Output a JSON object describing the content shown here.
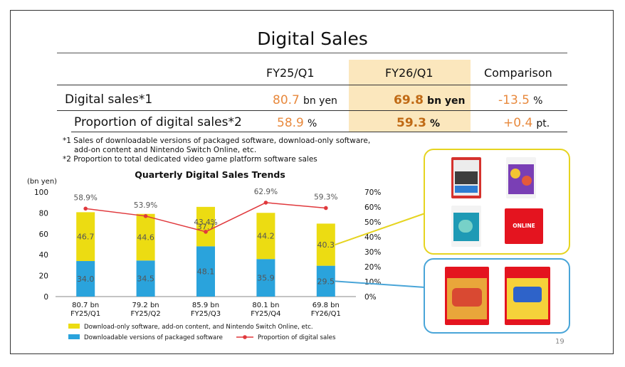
{
  "slide": {
    "title": "Digital Sales",
    "page_number": "19"
  },
  "table": {
    "headers": [
      "FY25/Q1",
      "FY26/Q1",
      "Comparison"
    ],
    "rows": [
      {
        "label": "Digital sales*1",
        "fy25": "80.7",
        "fy25_unit": "bn yen",
        "fy26": "69.8",
        "fy26_unit": "bn yen",
        "comp": "-13.5",
        "comp_unit": "%"
      },
      {
        "label": "Proportion of digital sales*2",
        "fy25": "58.9",
        "fy25_unit": "%",
        "fy26": "59.3",
        "fy26_unit": "%",
        "comp": "+0.4",
        "comp_unit": "pt."
      }
    ]
  },
  "notes": [
    "*1 Sales of downloadable versions of packaged software, download-only software,",
    "add-on content and Nintendo Switch Online, etc.",
    "*2 Proportion to total dedicated video game platform software sales"
  ],
  "colors": {
    "yellow": "#ecdc12",
    "blue": "#2aa3dc",
    "red": "#e0383c",
    "highlight": "#fbe7bd",
    "orange": "#e8893d"
  },
  "callouts": {
    "yellow_icons": [
      "welcome-tour-card-icon",
      "party-game-card-icon",
      "adventure-game-card-icon",
      "switch-online-card-icon"
    ],
    "yellow_online_text": "ONLINE",
    "blue_icons": [
      "kart-game-box-icon",
      "mario-party-box-icon"
    ]
  },
  "chart_data": {
    "type": "bar",
    "title": "Quarterly Digital Sales Trends",
    "ylabel": "(bn yen)",
    "ylim": [
      0,
      100
    ],
    "y_ticks": [
      "0",
      "20",
      "40",
      "60",
      "80",
      "100"
    ],
    "y2_ticks": [
      "0%",
      "10%",
      "20%",
      "30%",
      "40%",
      "50%",
      "60%",
      "70%"
    ],
    "y2lim": [
      0,
      70
    ],
    "categories": [
      "FY25/Q1",
      "FY25/Q2",
      "FY25/Q3",
      "FY25/Q4",
      "FY26/Q1"
    ],
    "totals": [
      "80.7 bn",
      "79.2 bn",
      "85.9 bn",
      "80.1 bn",
      "69.8 bn"
    ],
    "series": [
      {
        "name": "Downloadable versions of packaged software",
        "kind": "stacked-bar",
        "values": [
          34.0,
          34.5,
          48.1,
          35.9,
          29.5
        ],
        "labels": [
          "34.0",
          "34.5",
          "48.1",
          "35.9",
          "29.5"
        ]
      },
      {
        "name": "Download-only software, add-on content, and Nintendo Switch Online, etc.",
        "kind": "stacked-bar",
        "values": [
          46.7,
          44.6,
          37.7,
          44.2,
          40.3
        ],
        "labels": [
          "46.7",
          "44.6",
          "37.7",
          "44.2",
          "40.3"
        ]
      },
      {
        "name": "Proportion of digital sales",
        "kind": "line",
        "axis": "right",
        "values": [
          58.9,
          53.9,
          43.4,
          62.9,
          59.3
        ],
        "labels": [
          "58.9%",
          "53.9%",
          "43.4%",
          "62.9%",
          "59.3%"
        ]
      }
    ],
    "legend": [
      "Download-only software, add-on content, and Nintendo Switch Online, etc.",
      "Downloadable versions of packaged software",
      "Proportion of digital sales"
    ]
  }
}
